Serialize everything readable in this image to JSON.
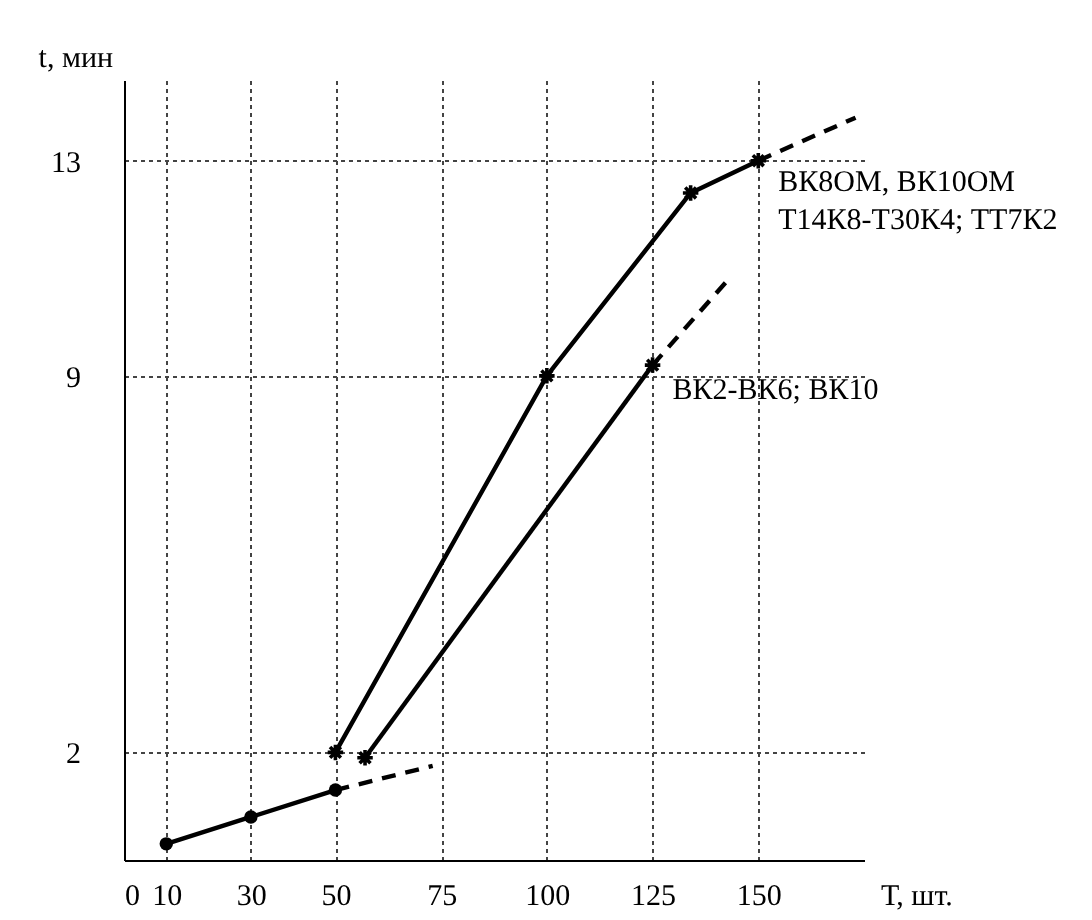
{
  "chart_data": {
    "type": "line",
    "xlabel": "Т, шт.",
    "ylabel": "t, мин",
    "xlim": [
      0,
      175
    ],
    "xticks": [
      0,
      10,
      30,
      50,
      75,
      100,
      125,
      150
    ],
    "ylim": [
      0,
      14.5
    ],
    "yticks": [
      2,
      9,
      13
    ],
    "grid": true,
    "series": [
      {
        "name": "ВК8ОМ, ВК10ОМ\nТ14К8-Т30К4; ТТ7К2",
        "color": "#000000",
        "x": [
          50,
          100,
          134,
          150
        ],
        "values": [
          2,
          9,
          12.4,
          13
        ],
        "marker": "cross",
        "line_style": "solid"
      },
      {
        "color": "#000000",
        "x": [
          150,
          173
        ],
        "values": [
          13,
          13.8
        ],
        "marker": "none",
        "line_style": "dashed"
      },
      {
        "name": "ВК2-ВК6; ВК10",
        "color": "#000000",
        "x": [
          57,
          125
        ],
        "values": [
          1.9,
          9.2
        ],
        "marker": "cross",
        "line_style": "solid"
      },
      {
        "color": "#000000",
        "x": [
          125,
          143
        ],
        "values": [
          9.2,
          10.8
        ],
        "marker": "none",
        "line_style": "dashed"
      },
      {
        "color": "#000000",
        "x": [
          10,
          30,
          50
        ],
        "values": [
          0.3,
          0.8,
          1.3
        ],
        "marker": "circle",
        "line_style": "solid"
      },
      {
        "color": "#000000",
        "x": [
          50,
          73
        ],
        "values": [
          1.3,
          1.75
        ],
        "marker": "none",
        "line_style": "dashed"
      }
    ]
  }
}
